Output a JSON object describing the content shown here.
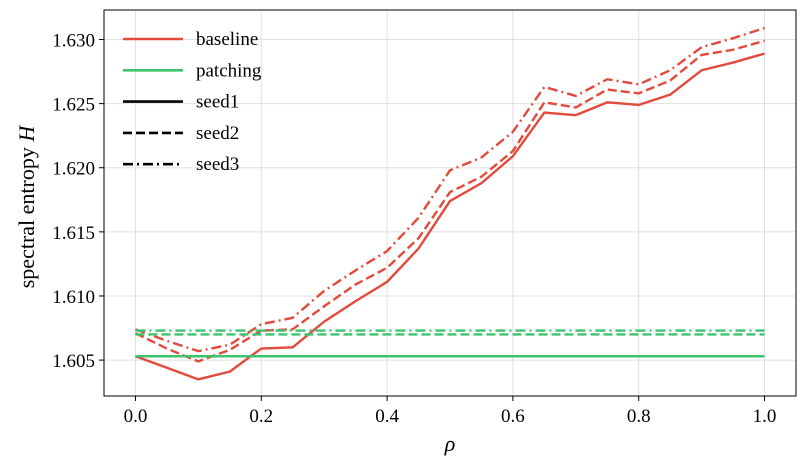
{
  "chart_data": {
    "type": "line",
    "title": "",
    "xlabel": "ρ",
    "ylabel_main": "spectral entropy ",
    "ylabel_symbol": "H",
    "xlim": [
      -0.05,
      1.05
    ],
    "ylim": [
      1.6022,
      1.6323
    ],
    "xticks": [
      0.0,
      0.2,
      0.4,
      0.6,
      0.8,
      1.0
    ],
    "xtick_labels": [
      "0.0",
      "0.2",
      "0.4",
      "0.6",
      "0.8",
      "1.0"
    ],
    "yticks": [
      1.605,
      1.61,
      1.615,
      1.62,
      1.625,
      1.63
    ],
    "ytick_labels": [
      "1.605",
      "1.610",
      "1.615",
      "1.620",
      "1.625",
      "1.630"
    ],
    "grid": true,
    "legend_position": "top-left",
    "legend": [
      {
        "label": "baseline",
        "kind": "color",
        "color": "#e24a3b",
        "dash": "solid"
      },
      {
        "label": "patching",
        "kind": "color",
        "color": "#3cc46f",
        "dash": "solid"
      },
      {
        "label": "seed1",
        "kind": "style",
        "color": "#000000",
        "dash": "solid"
      },
      {
        "label": "seed2",
        "kind": "style",
        "color": "#000000",
        "dash": "dashed"
      },
      {
        "label": "seed3",
        "kind": "style",
        "color": "#000000",
        "dash": "dashdot"
      }
    ],
    "x": [
      0.0,
      0.05,
      0.1,
      0.15,
      0.2,
      0.25,
      0.3,
      0.35,
      0.4,
      0.45,
      0.5,
      0.55,
      0.6,
      0.65,
      0.7,
      0.75,
      0.8,
      0.85,
      0.9,
      0.95,
      1.0
    ],
    "series": [
      {
        "name": "baseline seed1",
        "group": "baseline",
        "color": "#e24a3b",
        "dash": "solid",
        "values": [
          1.6053,
          1.6044,
          1.6035,
          1.6041,
          1.6059,
          1.606,
          1.608,
          1.6096,
          1.6111,
          1.6137,
          1.6174,
          1.6188,
          1.6209,
          1.6243,
          1.6241,
          1.6251,
          1.6249,
          1.6257,
          1.6276,
          1.6282,
          1.6289
        ]
      },
      {
        "name": "baseline seed2",
        "group": "baseline",
        "color": "#e24a3b",
        "dash": "dashed",
        "values": [
          1.6071,
          1.6059,
          1.6049,
          1.6058,
          1.6073,
          1.6074,
          1.6092,
          1.6109,
          1.6122,
          1.6145,
          1.6181,
          1.6193,
          1.6213,
          1.6251,
          1.6247,
          1.6261,
          1.6258,
          1.6268,
          1.6288,
          1.6292,
          1.6299
        ]
      },
      {
        "name": "baseline seed3",
        "group": "baseline",
        "color": "#e24a3b",
        "dash": "dashdot",
        "values": [
          1.6074,
          1.6065,
          1.6057,
          1.6062,
          1.6078,
          1.6083,
          1.6104,
          1.612,
          1.6135,
          1.6161,
          1.6198,
          1.6208,
          1.6228,
          1.6263,
          1.6256,
          1.6269,
          1.6265,
          1.6276,
          1.6294,
          1.6301,
          1.6309
        ]
      },
      {
        "name": "patching seed1",
        "group": "patching",
        "color": "#3cc46f",
        "dash": "solid",
        "values": [
          1.6053,
          1.6053,
          1.6053,
          1.6053,
          1.6053,
          1.6053,
          1.6053,
          1.6053,
          1.6053,
          1.6053,
          1.6053,
          1.6053,
          1.6053,
          1.6053,
          1.6053,
          1.6053,
          1.6053,
          1.6053,
          1.6053,
          1.6053,
          1.6053
        ]
      },
      {
        "name": "patching seed2",
        "group": "patching",
        "color": "#3cc46f",
        "dash": "dashed",
        "values": [
          1.607,
          1.607,
          1.607,
          1.607,
          1.607,
          1.607,
          1.607,
          1.607,
          1.607,
          1.607,
          1.607,
          1.607,
          1.607,
          1.607,
          1.607,
          1.607,
          1.607,
          1.607,
          1.607,
          1.607,
          1.607
        ]
      },
      {
        "name": "patching seed3",
        "group": "patching",
        "color": "#3cc46f",
        "dash": "dashdot",
        "values": [
          1.6073,
          1.6073,
          1.6073,
          1.6073,
          1.6073,
          1.6073,
          1.6073,
          1.6073,
          1.6073,
          1.6073,
          1.6073,
          1.6073,
          1.6073,
          1.6073,
          1.6073,
          1.6073,
          1.6073,
          1.6073,
          1.6073,
          1.6073,
          1.6073
        ]
      }
    ]
  }
}
